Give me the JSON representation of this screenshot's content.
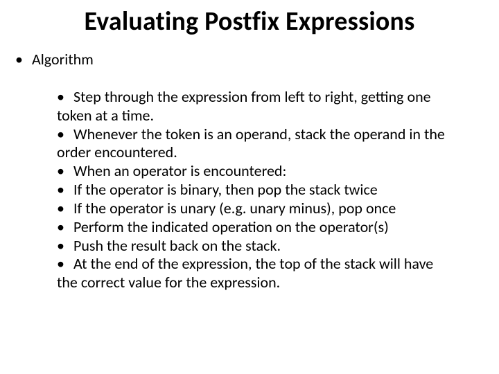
{
  "title": "Evaluating Postfix Expressions",
  "outer": {
    "label": "Algorithm"
  },
  "bullets": {
    "b1a": "Step through the expression from left to right, getting one",
    "b1b": "token at a time.",
    "b2a": "Whenever the token is an operand, stack the operand in the",
    "b2b": "order encountered.",
    "b3": "When an operator is encountered:",
    "b4": "If the operator is binary, then pop the stack twice",
    "b5": "If the operator is unary (e.g. unary minus), pop once",
    "b6": "Perform the indicated operation on the operator(s)",
    "b7": "Push the result back on the stack.",
    "b8a": "At the end of the expression, the top of the stack will have",
    "b8b": "the correct value for the expression."
  },
  "style": {
    "title_fontsize": 38,
    "body_fontsize": 22,
    "title_color": "#000000",
    "body_color": "#000000",
    "background": "#ffffff"
  }
}
